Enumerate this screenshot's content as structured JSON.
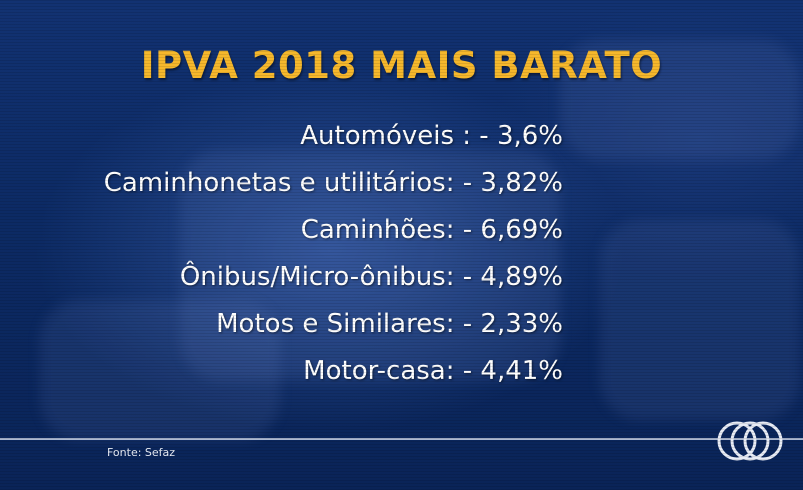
{
  "title": "IPVA 2018 MAIS BARATO",
  "items": [
    {
      "label": "Automóveis : - 3,6%"
    },
    {
      "label": "Caminhonetas e utilitários: - 3,82%"
    },
    {
      "label": "Caminhões: - 6,69%"
    },
    {
      "label": "Ônibus/Micro-ônibus: - 4,89%"
    },
    {
      "label": "Motos e Similares: - 2,33%"
    },
    {
      "label": "Motor-casa: - 4,41%"
    }
  ],
  "source": "Fonte: Sefaz",
  "colors": {
    "title": "#f6b82c",
    "text": "#ffffff",
    "background": "#0d2a66"
  },
  "logo_icon": "tv-network-logo-icon"
}
